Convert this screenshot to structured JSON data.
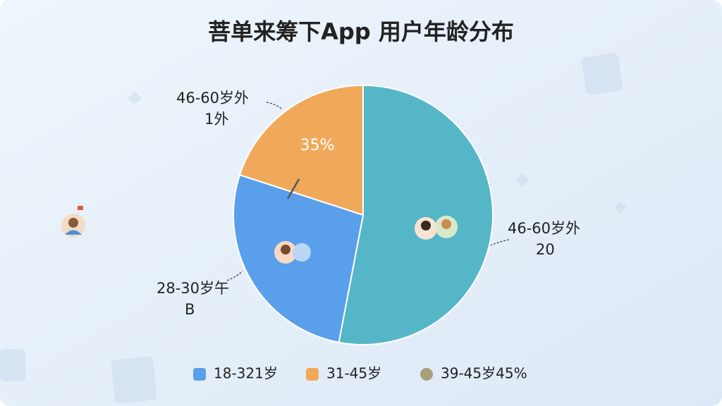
{
  "chart_data": {
    "type": "pie",
    "title": "菩单来筹下App 用户年龄分布",
    "values": [
      53,
      27,
      20
    ],
    "colors": [
      "#55b6c8",
      "#5a9fea",
      "#f0a95a"
    ],
    "slice_labels": [
      [
        "46-60岁外",
        "20"
      ],
      [
        "28-30岁午",
        "B"
      ],
      [
        "46-60岁外",
        "1外"
      ]
    ],
    "annotations": [
      "35%"
    ],
    "legend": [
      {
        "name": "18-321岁",
        "color": "#5a9fea"
      },
      {
        "name": "31-45岁",
        "color": "#f0a95a"
      },
      {
        "name": "39-45岁45%",
        "color": "#a8a07a"
      }
    ]
  }
}
